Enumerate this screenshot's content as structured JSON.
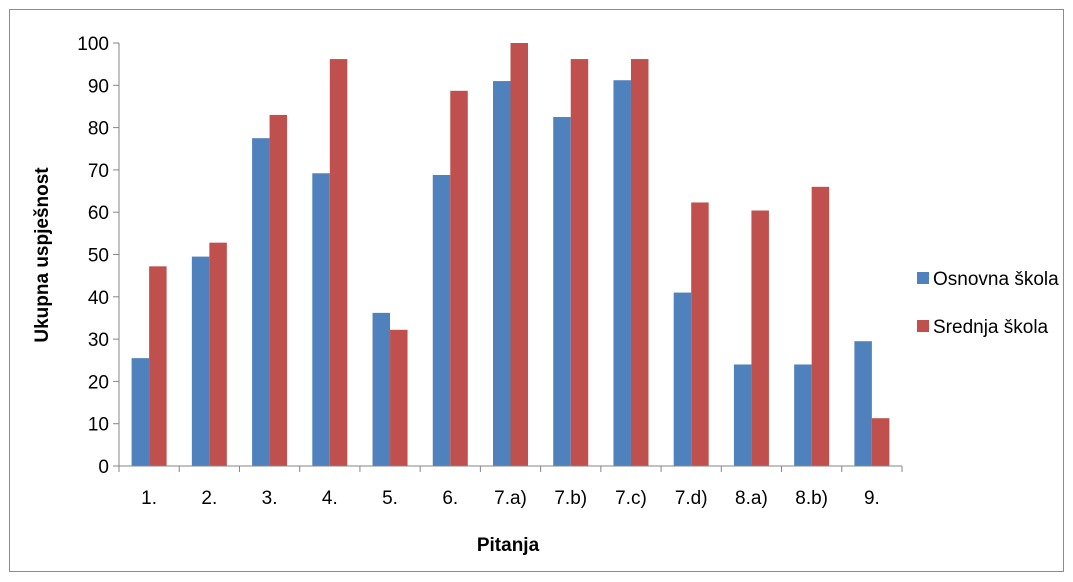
{
  "chart_data": {
    "type": "bar",
    "title": "",
    "xlabel": "Pitanja",
    "ylabel": "Ukupna uspješnost",
    "ylim": [
      0,
      100
    ],
    "yticks": [
      "0",
      "10",
      "20",
      "30",
      "40",
      "50",
      "60",
      "70",
      "80",
      "90",
      "100"
    ],
    "grid": false,
    "legend_position": "right",
    "categories": [
      "1.",
      "2.",
      "3.",
      "4.",
      "5.",
      "6.",
      "7.a)",
      "7.b)",
      "7.c)",
      "7.d)",
      "8.a)",
      "8.b)",
      "9."
    ],
    "series": [
      {
        "name": "Osnovna škola",
        "color": "#4f81bd",
        "values": [
          25.5,
          49.5,
          77.5,
          69.2,
          36.2,
          68.8,
          91.0,
          82.5,
          91.2,
          41.0,
          24.0,
          24.0,
          29.5
        ]
      },
      {
        "name": "Srednja škola",
        "color": "#c0504d",
        "values": [
          47.2,
          52.8,
          83.0,
          96.2,
          32.2,
          88.7,
          100.0,
          96.2,
          96.2,
          62.3,
          60.4,
          66.0,
          11.3
        ]
      }
    ]
  }
}
